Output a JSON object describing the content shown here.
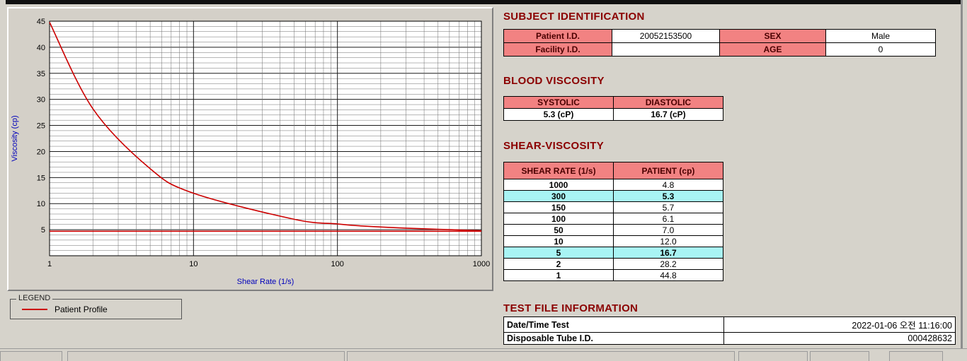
{
  "chart_data": {
    "type": "line",
    "x_scale": "log",
    "xlabel": "Shear Rate (1/s)",
    "ylabel": "Viscosity (cp)",
    "xlim": [
      1,
      1000
    ],
    "ylim": [
      0,
      45
    ],
    "x_ticks": [
      1,
      10,
      100,
      1000
    ],
    "y_ticks": [
      5,
      10,
      15,
      20,
      25,
      30,
      35,
      40,
      45
    ],
    "grid": "dense-both-axes",
    "series": [
      {
        "name": "Patient Profile",
        "color": "#cc0000",
        "x": [
          1,
          2,
          5,
          10,
          50,
          100,
          150,
          300,
          1000
        ],
        "y": [
          44.8,
          28.2,
          16.7,
          12.0,
          7.0,
          6.1,
          5.7,
          5.3,
          4.8
        ]
      },
      {
        "name": "reference-line",
        "color": "#cc0000",
        "x": [
          1,
          1000
        ],
        "y": [
          4.7,
          4.7
        ]
      }
    ],
    "legend": {
      "label": "LEGEND",
      "entries": [
        {
          "label": "Patient Profile",
          "color": "#cc0000"
        }
      ],
      "position": "below-left"
    }
  },
  "sections": {
    "subject": {
      "title": "SUBJECT IDENTIFICATION",
      "rows": [
        {
          "label1": "Patient I.D.",
          "value1": "20052153500",
          "label2": "SEX",
          "value2": "Male"
        },
        {
          "label1": "Facility I.D.",
          "value1": "",
          "label2": "AGE",
          "value2": "0"
        }
      ]
    },
    "blood": {
      "title": "BLOOD VISCOSITY",
      "headers": [
        "SYSTOLIC",
        "DIASTOLIC"
      ],
      "values": [
        "5.3 (cP)",
        "16.7 (cP)"
      ]
    },
    "shear": {
      "title": "SHEAR-VISCOSITY",
      "headers": [
        "SHEAR RATE (1/s)",
        "PATIENT (cp)"
      ],
      "rows": [
        {
          "rate": "1000",
          "value": "4.8",
          "highlight": false
        },
        {
          "rate": "300",
          "value": "5.3",
          "highlight": true
        },
        {
          "rate": "150",
          "value": "5.7",
          "highlight": false
        },
        {
          "rate": "100",
          "value": "6.1",
          "highlight": false
        },
        {
          "rate": "50",
          "value": "7.0",
          "highlight": false
        },
        {
          "rate": "10",
          "value": "12.0",
          "highlight": false
        },
        {
          "rate": "5",
          "value": "16.7",
          "highlight": true
        },
        {
          "rate": "2",
          "value": "28.2",
          "highlight": false
        },
        {
          "rate": "1",
          "value": "44.8",
          "highlight": false
        }
      ]
    },
    "testfile": {
      "title": "TEST FILE INFORMATION",
      "rows": [
        {
          "label": "Date/Time Test",
          "value": "2022-01-06  오전 11:16:00"
        },
        {
          "label": "Disposable Tube I.D.",
          "value": "000428632"
        }
      ]
    }
  },
  "colors": {
    "heading": "#8b0000",
    "table_header_bg": "#f28282",
    "highlight_bg": "#a8f4f4",
    "curve": "#cc0000"
  }
}
